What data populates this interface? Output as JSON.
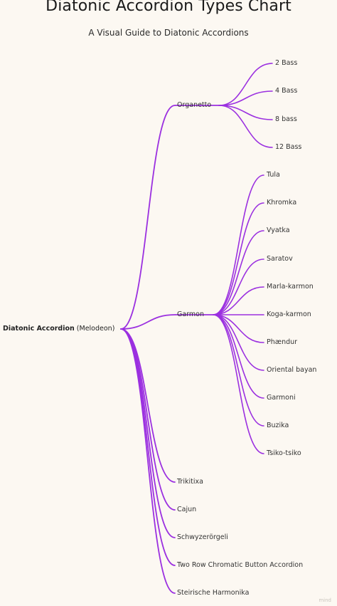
{
  "header": {
    "title": "Diatonic Accordion Types Chart",
    "subtitle": "A Visual Guide to Diatonic Accordions"
  },
  "colors": {
    "background": "#fcf8f2",
    "link": "#9b30e0",
    "text": "#333333"
  },
  "tree": {
    "root": {
      "name": "Diatonic Accordion",
      "note": "(Melodeon)"
    },
    "branches": [
      {
        "name": "Organetto",
        "children": [
          "2 Bass",
          "4 Bass",
          "8 bass",
          "12 Bass"
        ]
      },
      {
        "name": "Garmon",
        "children": [
          "Tula",
          "Khromka",
          "Vyatka",
          "Saratov",
          "Marla-karmon",
          "Koga-karmon",
          "Phændur",
          "Oriental bayan",
          "Garmoni",
          "Buzika",
          "Tsiko-tsiko"
        ]
      },
      {
        "name": "Trikitixa",
        "children": []
      },
      {
        "name": "Cajun",
        "children": []
      },
      {
        "name": "Schwyzerörgeli",
        "children": []
      },
      {
        "name": "Two Row Chromatic Button Accordion",
        "children": []
      },
      {
        "name": "Steirische Harmonika",
        "children": []
      }
    ]
  },
  "watermark": "mind"
}
